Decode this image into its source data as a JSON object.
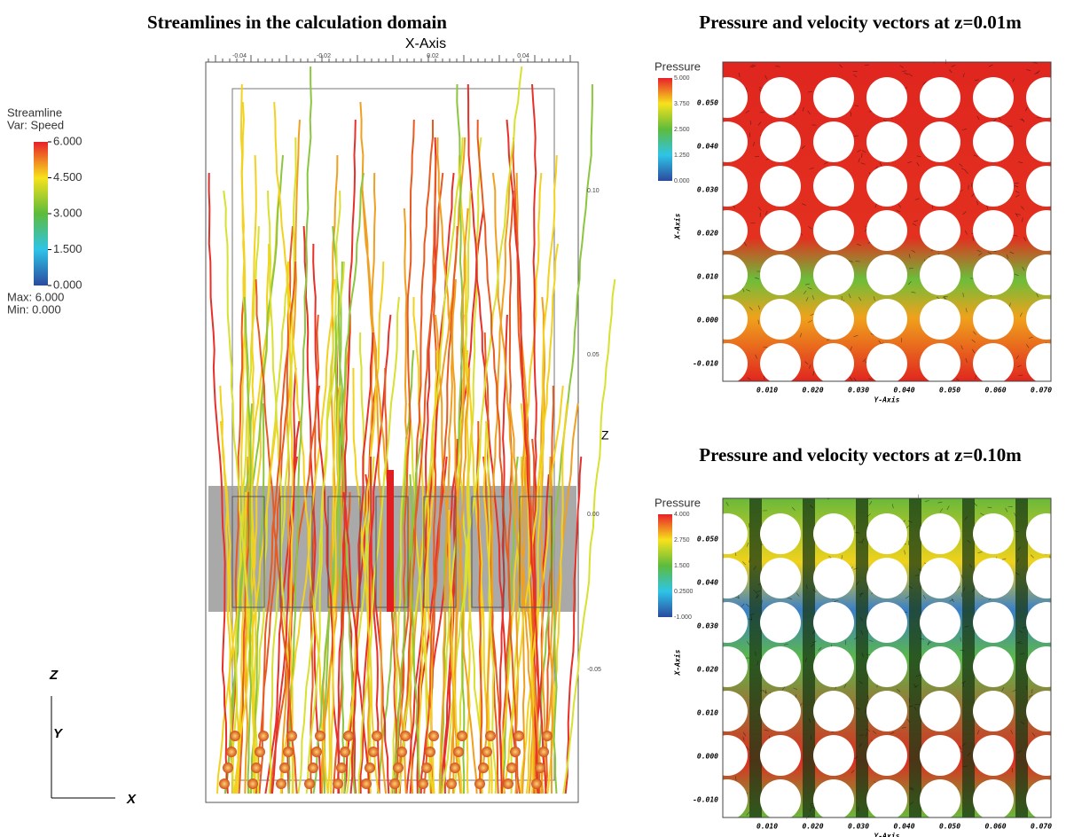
{
  "left": {
    "title": "Streamlines in the calculation domain",
    "legend": {
      "title": "Streamline",
      "variable": "Var: Speed",
      "ticks": [
        "6.000",
        "4.500",
        "3.000",
        "1.500",
        "0.000"
      ],
      "max": "Max: 6.000",
      "min": "Min: 0.000"
    },
    "x_axis_label": "X-Axis",
    "x_ticks": [
      "-0.04",
      "-0.02",
      "0.02",
      "0.04"
    ],
    "z_axis_label": "Z",
    "z_ticks": [
      "0.10",
      "0.05",
      "0.00",
      "-0.05"
    ],
    "triad": {
      "z": "Z",
      "y": "Y",
      "x": "X"
    }
  },
  "panels": [
    {
      "title": "Pressure and velocity vectors at z=0.01m",
      "legend_title": "Pressure",
      "legend_ticks": [
        "5.000",
        "3.750",
        "2.500",
        "1.250",
        "0.000"
      ],
      "y_axis_label": "X-Axis",
      "y_ticks": [
        "0.050",
        "0.040",
        "0.030",
        "0.020",
        "0.010",
        "0.000",
        "-0.010"
      ],
      "x_axis_label": "Y-Axis",
      "x_ticks": [
        "0.010",
        "0.020",
        "0.030",
        "0.040",
        "0.050",
        "0.060",
        "0.070"
      ]
    },
    {
      "title": "Pressure and velocity vectors at z=0.10m",
      "legend_title": "Pressure",
      "legend_ticks": [
        "4.000",
        "2.750",
        "1.500",
        "0.2500",
        "-1.000"
      ],
      "y_axis_label": "X-Axis",
      "y_ticks": [
        "0.050",
        "0.040",
        "0.030",
        "0.020",
        "0.010",
        "0.000",
        "-0.010"
      ],
      "x_axis_label": "Y-Axis",
      "x_ticks": [
        "0.010",
        "0.020",
        "0.030",
        "0.040",
        "0.050",
        "0.060",
        "0.070"
      ]
    }
  ]
}
